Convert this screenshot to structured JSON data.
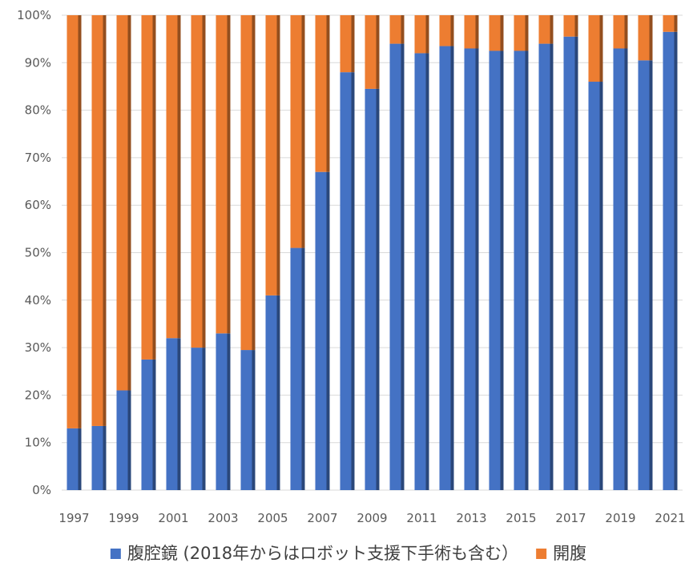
{
  "chart_data": {
    "type": "bar",
    "stacked": "percent",
    "categories": [
      "1997",
      "1998",
      "1999",
      "2000",
      "2001",
      "2002",
      "2003",
      "2004",
      "2005",
      "2006",
      "2007",
      "2008",
      "2009",
      "2010",
      "2011",
      "2012",
      "2013",
      "2014",
      "2015",
      "2016",
      "2017",
      "2018",
      "2019",
      "2020",
      "2021"
    ],
    "x_tick_labels": [
      "1997",
      "1999",
      "2001",
      "2003",
      "2005",
      "2007",
      "2009",
      "2011",
      "2013",
      "2015",
      "2017",
      "2019",
      "2021"
    ],
    "series": [
      {
        "name": "腹腔鏡 (2018年からはロボット支援下手術も含む）",
        "color": "#4472C4",
        "values": [
          13,
          13.5,
          21,
          27.5,
          32,
          30,
          33,
          29.5,
          41,
          51,
          67,
          88,
          84.5,
          94,
          92,
          93.5,
          93,
          92.5,
          92.5,
          94,
          95.5,
          86,
          93,
          90.5,
          96.5
        ]
      },
      {
        "name": "開腹",
        "color": "#ED7D31",
        "values": [
          87,
          86.5,
          79,
          72.5,
          68,
          70,
          67,
          70.5,
          59,
          49,
          33,
          12,
          15.5,
          6,
          8,
          6.5,
          7,
          7.5,
          7.5,
          6,
          4.5,
          14,
          7,
          9.5,
          3.5
        ]
      }
    ],
    "y_tick_labels": [
      "0%",
      "10%",
      "20%",
      "30%",
      "40%",
      "50%",
      "60%",
      "70%",
      "80%",
      "90%",
      "100%"
    ],
    "ylim": [
      0,
      100
    ],
    "grid": true,
    "legend_position": "bottom",
    "title": "",
    "xlabel": "",
    "ylabel": ""
  }
}
